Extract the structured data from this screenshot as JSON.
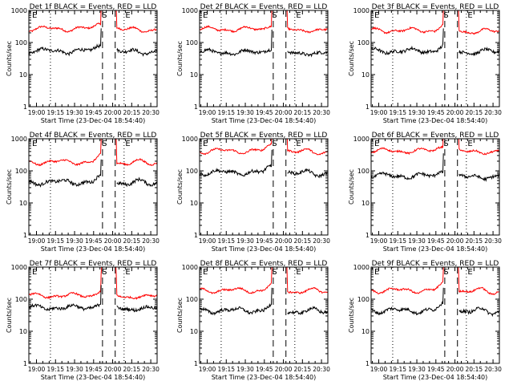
{
  "chart_data": {
    "type": "line",
    "x_axis_label": "Start Time (23-Dec-04 18:54:40)",
    "y_axis_label": "Counts/sec",
    "x_tick_labels": [
      "19:00",
      "19:15",
      "19:30",
      "19:45",
      "20:00",
      "20:15",
      "20:30"
    ],
    "x_ticks_min": [
      0,
      15,
      30,
      45,
      60,
      75,
      90
    ],
    "x_range_min": [
      -6,
      95
    ],
    "y_scale": "log",
    "y_range": [
      1,
      1000
    ],
    "y_tick_labels": [
      "1",
      "10",
      "100",
      "1000"
    ],
    "y_ticks": [
      1,
      10,
      100,
      1000
    ],
    "marker_labels": {
      "start": "S",
      "end": "E"
    },
    "series_colors": {
      "events": "#000000",
      "lld": "#ff0000"
    },
    "dotted_lines_min": [
      -6,
      11,
      69
    ],
    "dashed_lines_min": [
      52,
      62
    ],
    "panels": [
      {
        "title": "Det 1f BLACK = Events, RED = LLD",
        "events_level": 55,
        "lld_level": 270,
        "s_pos": 53.5,
        "e_pos": 72
      },
      {
        "title": "Det 2f BLACK = Events, RED = LLD",
        "events_level": 50,
        "lld_level": 260,
        "s_pos": 53,
        "e_pos": 72
      },
      {
        "title": "Det 3f BLACK = Events, RED = LLD",
        "events_level": 55,
        "lld_level": 240,
        "s_pos": 53,
        "e_pos": 72
      },
      {
        "title": "Det 4f BLACK = Events, RED = LLD",
        "events_level": 45,
        "lld_level": 190,
        "s_pos": 53.5,
        "e_pos": 72
      },
      {
        "title": "Det 5f BLACK = Events, RED = LLD",
        "events_level": 90,
        "lld_level": 420,
        "s_pos": 53,
        "e_pos": 72
      },
      {
        "title": "Det 6f BLACK = Events, RED = LLD",
        "events_level": 70,
        "lld_level": 420,
        "s_pos": 53,
        "e_pos": 72
      },
      {
        "title": "Det 7f BLACK = Events, RED = LLD",
        "events_level": 55,
        "lld_level": 130,
        "s_pos": 53.5,
        "e_pos": 72
      },
      {
        "title": "Det 8f BLACK = Events, RED = LLD",
        "events_level": 45,
        "lld_level": 190,
        "s_pos": 53,
        "e_pos": 72
      },
      {
        "title": "Det 9f BLACK = Events, RED = LLD",
        "events_level": 45,
        "lld_level": 190,
        "s_pos": 53,
        "e_pos": 72
      }
    ]
  }
}
